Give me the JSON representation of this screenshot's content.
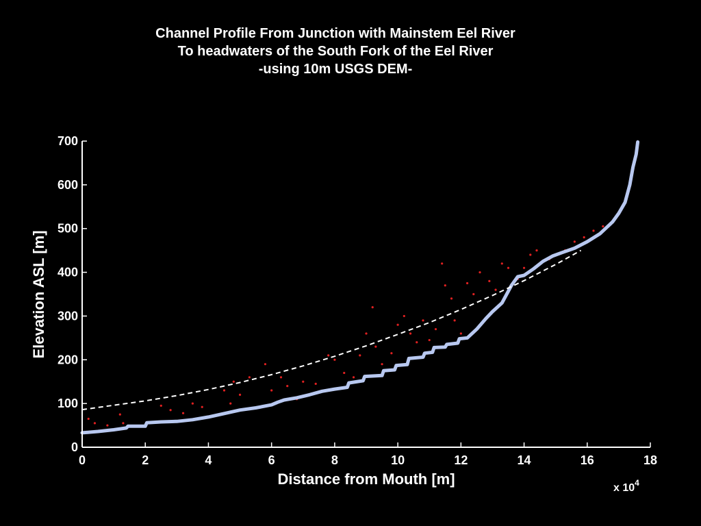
{
  "chart_data": {
    "type": "line",
    "title_lines": [
      "Channel Profile From Junction with Mainstem Eel River",
      "To headwaters of the South Fork of the Eel River",
      "-using 10m USGS DEM-"
    ],
    "xlabel": "Distance from Mouth [m]",
    "ylabel": "Elevation ASL [m]",
    "x_multiplier_label": "x 10",
    "x_multiplier_exponent": "4",
    "xlim": [
      0,
      18
    ],
    "ylim": [
      0,
      700
    ],
    "x_ticks": [
      "0",
      "2",
      "4",
      "6",
      "8",
      "10",
      "12",
      "14",
      "16",
      "18"
    ],
    "y_ticks": [
      "0",
      "100",
      "200",
      "300",
      "400",
      "500",
      "600",
      "700"
    ],
    "grid": false,
    "colors": {
      "background": "#000000",
      "profile": "#b8c8f0",
      "points": "#e02020",
      "fit": "#ffffff"
    },
    "series": [
      {
        "style": "solid",
        "x": [
          0,
          0.5,
          1.0,
          1.4,
          1.45,
          2.0,
          2.05,
          2.5,
          3.0,
          3.5,
          4.0,
          4.5,
          5.0,
          5.5,
          6.0,
          6.2,
          6.4,
          6.8,
          7.2,
          7.6,
          8.0,
          8.4,
          8.45,
          8.9,
          8.95,
          9.5,
          9.55,
          9.9,
          9.95,
          10.3,
          10.35,
          10.8,
          10.85,
          11.1,
          11.15,
          11.5,
          11.55,
          11.9,
          11.95,
          12.2,
          12.5,
          12.8,
          13.0,
          13.3,
          13.6,
          13.8,
          14.0,
          14.3,
          14.6,
          14.9,
          15.2,
          15.6,
          16.0,
          16.4,
          16.8,
          17.0,
          17.2,
          17.35,
          17.45,
          17.55,
          17.6
        ],
        "y": [
          33,
          36,
          40,
          44,
          48,
          48,
          56,
          58,
          59,
          63,
          69,
          77,
          85,
          90,
          97,
          103,
          108,
          113,
          120,
          128,
          133,
          137,
          147,
          152,
          162,
          164,
          175,
          177,
          187,
          189,
          203,
          206,
          215,
          217,
          228,
          229,
          235,
          238,
          248,
          250,
          270,
          295,
          310,
          330,
          370,
          390,
          393,
          408,
          425,
          437,
          445,
          455,
          470,
          488,
          515,
          535,
          560,
          600,
          640,
          670,
          698
        ]
      },
      {
        "style": "dashed",
        "x": [
          0,
          1,
          2,
          3,
          4,
          5,
          6,
          7,
          8,
          9,
          10,
          11,
          12,
          13,
          14,
          15,
          15.8
        ],
        "y": [
          86,
          96,
          106,
          118,
          132,
          148,
          166,
          186,
          208,
          232,
          258,
          285,
          315,
          347,
          381,
          418,
          450
        ]
      },
      {
        "style": "points",
        "x": [
          0.2,
          0.4,
          0.8,
          1.2,
          1.3,
          2.5,
          2.8,
          3.2,
          3.5,
          3.8,
          4.5,
          4.7,
          4.8,
          5.0,
          5.3,
          5.8,
          6.0,
          6.3,
          6.5,
          6.8,
          7.0,
          7.4,
          7.8,
          8.0,
          8.3,
          8.6,
          8.8,
          9.0,
          9.2,
          9.3,
          9.5,
          9.8,
          10.0,
          10.2,
          10.4,
          10.6,
          10.8,
          11.0,
          11.2,
          11.4,
          11.5,
          11.7,
          11.8,
          12.0,
          12.2,
          12.4,
          12.6,
          12.9,
          13.1,
          13.3,
          13.5,
          13.8,
          14.0,
          14.2,
          14.4,
          14.8,
          15.0,
          15.3,
          15.6,
          15.9,
          16.2,
          16.5
        ],
        "y": [
          65,
          55,
          50,
          75,
          55,
          95,
          85,
          78,
          100,
          92,
          130,
          100,
          150,
          120,
          160,
          190,
          130,
          160,
          140,
          110,
          150,
          145,
          210,
          200,
          170,
          160,
          210,
          260,
          320,
          230,
          190,
          215,
          280,
          300,
          260,
          240,
          290,
          245,
          270,
          420,
          370,
          340,
          290,
          260,
          375,
          350,
          400,
          380,
          360,
          420,
          410,
          385,
          410,
          440,
          450,
          430,
          440,
          450,
          470,
          480,
          495,
          505
        ]
      }
    ]
  }
}
